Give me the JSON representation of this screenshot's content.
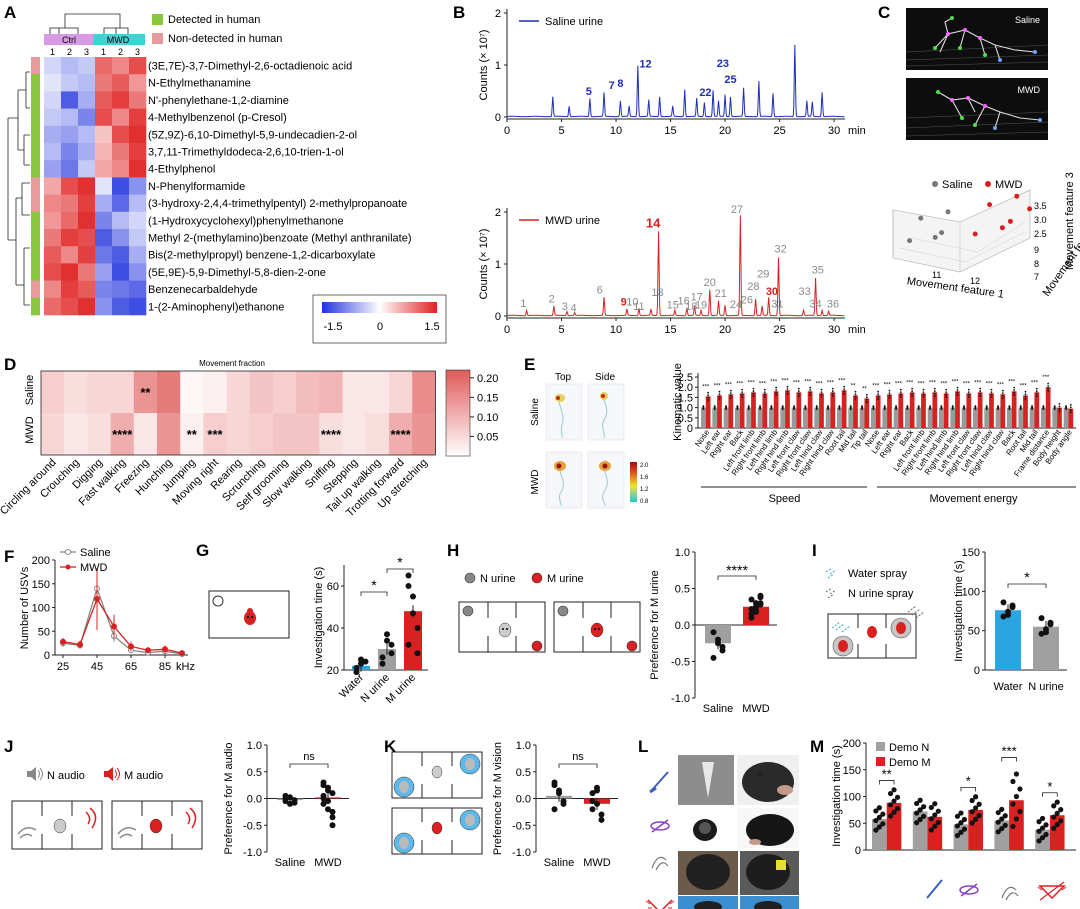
{
  "panel_labels": [
    "A",
    "B",
    "C",
    "D",
    "E",
    "F",
    "G",
    "H",
    "I",
    "J",
    "K",
    "L",
    "M"
  ],
  "colors": {
    "blue": "#1f2fb5",
    "red": "#d92121",
    "green": "#8cc63e",
    "pink": "#e99a9a",
    "ctrl": "#d79be6",
    "mwd": "#3fd3d3",
    "grey": "#8a8a8a",
    "lightblue": "#2aa5e0",
    "heat_low": "#2233dd",
    "heat_high": "#e02020"
  },
  "panelA": {
    "group_labels": [
      "Ctrl",
      "MWD"
    ],
    "col_labels": [
      "1",
      "2",
      "3",
      "1",
      "2",
      "3"
    ],
    "legend": [
      {
        "label": "Detected in human",
        "color": "#8cc63e"
      },
      {
        "label": "Non-detected in human",
        "color": "#e99a9a"
      }
    ],
    "compounds": [
      "(3E,7E)-3,7-Dimethyl-2,6-octadienoic acid",
      "N-Ethylmethanamine",
      "N'-phenylethane-1,2-diamine",
      "4-Methylbenzenol (p-Cresol)",
      "(5Z,9Z)-6,10-Dimethyl-5,9-undecadien-2-ol",
      "3,7,11-Trimethyldodeca-2,6,10-trien-1-ol",
      "4-Ethylphenol",
      "N-Phenylformamide",
      "(3-hydroxy-2,4,4-trimethylpentyl) 2-methylpropanoate",
      "(1-Hydroxycyclohexyl)phenylmethanone",
      "Methyl 2-(methylamino)benzoate  (Methyl anthranilate)",
      "Bis(2-methylpropyl) benzene-1,2-dicarboxylate",
      "(5E,9E)-5,9-Dimethyl-5,8-dien-2-one",
      "Benzenecarbaldehyde",
      "1-(2-Aminophenyl)ethanone"
    ],
    "detected": [
      0,
      1,
      1,
      1,
      1,
      1,
      1,
      0,
      0,
      1,
      1,
      1,
      1,
      0,
      1
    ],
    "matrix": [
      [
        -0.3,
        -0.5,
        -0.4,
        1.0,
        0.8,
        1.2
      ],
      [
        -0.2,
        -0.4,
        -0.5,
        0.9,
        1.1,
        0.7
      ],
      [
        -0.3,
        -1.2,
        -0.6,
        1.1,
        1.3,
        0.9
      ],
      [
        -0.4,
        -0.5,
        -0.9,
        1.2,
        0.8,
        1.3
      ],
      [
        -0.6,
        -0.7,
        -0.5,
        0.4,
        1.2,
        1.4
      ],
      [
        -0.5,
        -0.9,
        -0.6,
        0.5,
        0.9,
        1.3
      ],
      [
        -0.7,
        -1.0,
        -0.4,
        0.6,
        0.8,
        1.4
      ],
      [
        0.6,
        1.2,
        1.4,
        -0.2,
        -1.3,
        -0.8
      ],
      [
        0.8,
        0.9,
        1.3,
        -0.6,
        -1.1,
        -0.5
      ],
      [
        0.7,
        1.0,
        1.4,
        -0.9,
        -0.5,
        -0.3
      ],
      [
        0.9,
        1.3,
        1.2,
        -1.2,
        -0.8,
        -0.4
      ],
      [
        1.1,
        0.8,
        1.3,
        -1.0,
        -1.2,
        -0.6
      ],
      [
        1.2,
        1.4,
        0.9,
        -0.7,
        -1.3,
        -0.8
      ],
      [
        0.8,
        1.3,
        1.1,
        -0.9,
        -1.0,
        -1.1
      ],
      [
        1.0,
        1.2,
        1.4,
        -0.8,
        -1.2,
        -1.3
      ]
    ],
    "scale_ticks": [
      "-1.5",
      "0",
      "1.5"
    ]
  },
  "panelB": {
    "top": {
      "legend": "Saline urine",
      "ylabel": "Counts (× 10⁷)",
      "yticks": [
        "0",
        "1",
        "2"
      ],
      "xticks": [
        "0",
        "5",
        "10",
        "15",
        "20",
        "25",
        "30"
      ],
      "xunit": "min",
      "peaks": [
        {
          "x": 4.2,
          "h": 0.38
        },
        {
          "x": 5.7,
          "h": 0.2
        },
        {
          "x": 7.6,
          "h": 0.35
        },
        {
          "x": 8.9,
          "h": 0.46
        },
        {
          "x": 10.4,
          "h": 0.3
        },
        {
          "x": 11.2,
          "h": 0.2
        },
        {
          "x": 12.0,
          "h": 0.98
        },
        {
          "x": 13.0,
          "h": 0.32
        },
        {
          "x": 14.0,
          "h": 0.38
        },
        {
          "x": 15.2,
          "h": 0.2
        },
        {
          "x": 16.3,
          "h": 0.52
        },
        {
          "x": 17.4,
          "h": 0.35
        },
        {
          "x": 18.1,
          "h": 0.27
        },
        {
          "x": 18.9,
          "h": 0.5
        },
        {
          "x": 19.4,
          "h": 0.3
        },
        {
          "x": 20.0,
          "h": 0.42
        },
        {
          "x": 20.5,
          "h": 0.38
        },
        {
          "x": 21.7,
          "h": 0.55
        },
        {
          "x": 23.1,
          "h": 0.68
        },
        {
          "x": 24.4,
          "h": 0.45
        },
        {
          "x": 26.4,
          "h": 1.38
        },
        {
          "x": 27.5,
          "h": 0.3
        },
        {
          "x": 28.0,
          "h": 0.28
        },
        {
          "x": 28.9,
          "h": 0.47
        }
      ],
      "labels": [
        {
          "text": "5",
          "x": 7.5,
          "h": 0.42
        },
        {
          "text": "7",
          "x": 9.6,
          "h": 0.54
        },
        {
          "text": "8",
          "x": 10.4,
          "h": 0.58
        },
        {
          "text": "12",
          "x": 12.7,
          "h": 0.95
        },
        {
          "text": "22",
          "x": 18.2,
          "h": 0.4
        },
        {
          "text": "23",
          "x": 19.8,
          "h": 0.96
        },
        {
          "text": "25",
          "x": 20.5,
          "h": 0.65
        }
      ]
    },
    "bottom": {
      "legend": "MWD urine",
      "ylabel": "Counts (× 10⁷)",
      "yticks": [
        "0",
        "1",
        "2"
      ],
      "xticks": [
        "0",
        "5",
        "10",
        "15",
        "20",
        "25",
        "30"
      ],
      "xunit": "min",
      "peaks": [
        {
          "x": 1.8,
          "h": 0.1
        },
        {
          "x": 4.3,
          "h": 0.18
        },
        {
          "x": 5.5,
          "h": 0.08
        },
        {
          "x": 6.2,
          "h": 0.06
        },
        {
          "x": 8.9,
          "h": 0.35
        },
        {
          "x": 11.0,
          "h": 0.12
        },
        {
          "x": 12.1,
          "h": 0.14
        },
        {
          "x": 13.2,
          "h": 0.12
        },
        {
          "x": 13.9,
          "h": 1.62
        },
        {
          "x": 15.4,
          "h": 0.1
        },
        {
          "x": 16.5,
          "h": 0.15
        },
        {
          "x": 17.2,
          "h": 0.18
        },
        {
          "x": 17.8,
          "h": 0.1
        },
        {
          "x": 18.6,
          "h": 0.5
        },
        {
          "x": 19.4,
          "h": 0.28
        },
        {
          "x": 20.0,
          "h": 0.2
        },
        {
          "x": 21.4,
          "h": 1.92
        },
        {
          "x": 22.8,
          "h": 0.32
        },
        {
          "x": 23.4,
          "h": 0.18
        },
        {
          "x": 24.0,
          "h": 0.35
        },
        {
          "x": 24.9,
          "h": 1.12
        },
        {
          "x": 27.2,
          "h": 0.1
        },
        {
          "x": 28.3,
          "h": 0.72
        },
        {
          "x": 28.9,
          "h": 0.1
        },
        {
          "x": 29.5,
          "h": 0.08
        }
      ],
      "labels": [
        {
          "text": "1",
          "x": 1.5,
          "h": 0.17,
          "c": "grey"
        },
        {
          "text": "2",
          "x": 4.1,
          "h": 0.26,
          "c": "grey"
        },
        {
          "text": "3",
          "x": 5.3,
          "h": 0.12,
          "c": "grey"
        },
        {
          "text": "4",
          "x": 6.1,
          "h": 0.09,
          "c": "grey"
        },
        {
          "text": "6",
          "x": 8.5,
          "h": 0.43,
          "c": "grey"
        },
        {
          "text": "9",
          "x": 10.7,
          "h": 0.2,
          "c": "red"
        },
        {
          "text": "10",
          "x": 11.5,
          "h": 0.2,
          "c": "grey"
        },
        {
          "text": "11",
          "x": 12.1,
          "h": 0.12,
          "c": "grey"
        },
        {
          "text": "13",
          "x": 13.8,
          "h": 0.38,
          "c": "grey"
        },
        {
          "text": "14",
          "x": 13.4,
          "h": 1.7,
          "c": "red"
        },
        {
          "text": "15",
          "x": 15.2,
          "h": 0.14,
          "c": "grey"
        },
        {
          "text": "16",
          "x": 16.2,
          "h": 0.22,
          "c": "grey"
        },
        {
          "text": "17",
          "x": 17.4,
          "h": 0.3,
          "c": "grey"
        },
        {
          "text": "18",
          "x": 16.9,
          "h": 0.12,
          "c": "grey"
        },
        {
          "text": "19",
          "x": 17.8,
          "h": 0.14,
          "c": "grey"
        },
        {
          "text": "20",
          "x": 18.6,
          "h": 0.58,
          "c": "grey"
        },
        {
          "text": "21",
          "x": 19.6,
          "h": 0.37,
          "c": "grey"
        },
        {
          "text": "24",
          "x": 21.0,
          "h": 0.15,
          "c": "grey"
        },
        {
          "text": "26",
          "x": 22.0,
          "h": 0.24,
          "c": "grey"
        },
        {
          "text": "27",
          "x": 21.1,
          "h": 1.98,
          "c": "grey"
        },
        {
          "text": "28",
          "x": 22.6,
          "h": 0.5,
          "c": "grey"
        },
        {
          "text": "29",
          "x": 23.5,
          "h": 0.74,
          "c": "grey"
        },
        {
          "text": "30",
          "x": 24.3,
          "h": 0.4,
          "c": "red"
        },
        {
          "text": "31",
          "x": 24.8,
          "h": 0.16,
          "c": "grey"
        },
        {
          "text": "32",
          "x": 25.1,
          "h": 1.22,
          "c": "grey"
        },
        {
          "text": "33",
          "x": 27.3,
          "h": 0.4,
          "c": "grey"
        },
        {
          "text": "34",
          "x": 28.3,
          "h": 0.16,
          "c": "grey"
        },
        {
          "text": "35",
          "x": 28.5,
          "h": 0.82,
          "c": "grey"
        },
        {
          "text": "36",
          "x": 29.9,
          "h": 0.16,
          "c": "grey"
        }
      ]
    }
  },
  "panelC": {
    "top_label": "Saline",
    "bottom_label": "MWD",
    "legend": [
      "Saline",
      "MWD"
    ],
    "x_label": "Movement feature 1",
    "y_label": "Movement feature 2",
    "z_label": "Movement feature 3",
    "x_ticks": [
      "11",
      "12"
    ],
    "y_ticks": [
      "7",
      "8",
      "9"
    ],
    "z_ticks": [
      "2.5",
      "3.0",
      "3.5"
    ],
    "saline": [
      [
        6,
        9
      ],
      [
        13,
        23
      ],
      [
        22,
        11
      ],
      [
        30,
        27
      ],
      [
        26,
        14
      ]
    ],
    "mwd": [
      [
        47,
        10
      ],
      [
        56,
        24
      ],
      [
        64,
        13
      ],
      [
        73,
        28
      ],
      [
        69,
        16
      ],
      [
        81,
        22
      ]
    ]
  },
  "panelD": {
    "title": "Movement fraction",
    "rows": [
      "Saline",
      "MWD"
    ],
    "behaviors": [
      "Circling around",
      "Crouching",
      "Digging",
      "Fast walking",
      "Freezing",
      "Hunching",
      "Jumping",
      "Moving right",
      "Rearing",
      "Scrunching",
      "Self grooming",
      "Slow walking",
      "Sniffing",
      "Stepping",
      "Tail up walking",
      "Trotting forward",
      "Up stretching"
    ],
    "saline": [
      0.06,
      0.04,
      0.05,
      0.05,
      0.13,
      0.16,
      0.01,
      0.02,
      0.05,
      0.07,
      0.06,
      0.08,
      0.09,
      0.03,
      0.03,
      0.05,
      0.14
    ],
    "mwd": [
      0.05,
      0.03,
      0.04,
      0.1,
      0.03,
      0.13,
      0.02,
      0.06,
      0.05,
      0.06,
      0.07,
      0.07,
      0.04,
      0.03,
      0.04,
      0.1,
      0.13
    ],
    "sig": [
      {
        "row": 0,
        "col": 4,
        "text": "**"
      },
      {
        "row": 1,
        "col": 3,
        "text": "****"
      },
      {
        "row": 1,
        "col": 6,
        "text": "**"
      },
      {
        "row": 1,
        "col": 7,
        "text": "***"
      },
      {
        "row": 1,
        "col": 12,
        "text": "****"
      },
      {
        "row": 1,
        "col": 15,
        "text": "****"
      }
    ],
    "scale_ticks": [
      "0.20",
      "0.15",
      "0.10",
      "0.05"
    ]
  },
  "panelE": {
    "col_labels": [
      "Top",
      "Side"
    ],
    "row_labels": [
      "Saline",
      "MWD"
    ],
    "scale_ticks": [
      "2.0",
      "1.6",
      "1.2",
      "0.8"
    ],
    "ylabel": "Kinematic value",
    "yticks": [
      "0",
      "0.5",
      "1.0",
      "1.5",
      "2.0",
      "2.5"
    ],
    "speed_labels": [
      "Nose",
      "Left ear",
      "Right ear",
      "Back",
      "Left front limb",
      "Right front limb",
      "Left hind limb",
      "Right hind limb",
      "Left front claw",
      "Right front claw",
      "Left hind claw",
      "Right hind claw",
      "Root tail",
      "Mid tail",
      "Tip tail"
    ],
    "energy_labels": [
      "Nose",
      "Left ear",
      "Right ear",
      "Back",
      "Left front limb",
      "Right front limb",
      "Left hind limb",
      "Right hind limb",
      "Left front claw",
      "Right front claw",
      "Left hind claw",
      "Right hind claw",
      "Back",
      "Root tail",
      "Mid tail",
      "Frame distance",
      "Body height",
      "Body angle"
    ],
    "group_labels": [
      "Speed",
      "Movement energy"
    ],
    "saline": [
      1.0,
      1.0,
      1.0,
      1.0,
      1.0,
      1.0,
      1.0,
      1.0,
      1.0,
      1.0,
      1.0,
      1.0,
      1.0,
      1.0,
      1.0,
      1.0,
      1.0,
      1.0,
      1.0,
      1.0,
      1.0,
      1.0,
      1.0,
      1.0,
      1.0,
      1.0,
      1.0,
      1.0,
      1.0,
      1.0,
      1.0,
      1.0,
      1.0
    ],
    "mwd": [
      1.55,
      1.6,
      1.65,
      1.7,
      1.75,
      1.7,
      1.8,
      1.85,
      1.75,
      1.8,
      1.7,
      1.75,
      1.85,
      1.6,
      1.45,
      1.6,
      1.65,
      1.7,
      1.75,
      1.7,
      1.75,
      1.7,
      1.8,
      1.7,
      1.75,
      1.7,
      1.65,
      1.8,
      1.6,
      1.75,
      2.0,
      1.0,
      0.95
    ],
    "sig": [
      "***",
      "***",
      "***",
      "***",
      "***",
      "***",
      "***",
      "***",
      "***",
      "***",
      "***",
      "***",
      "***",
      "**",
      "**",
      "***",
      "***",
      "***",
      "***",
      "***",
      "***",
      "***",
      "***",
      "***",
      "***",
      "***",
      "***",
      "***",
      "***",
      "***",
      "***",
      "",
      ""
    ]
  },
  "panelF": {
    "legend": [
      "Saline",
      "MWD"
    ],
    "ylabel": "Number of USVs",
    "yticks": [
      "0",
      "50",
      "100",
      "150",
      "200"
    ],
    "xticks": [
      "25",
      "45",
      "65",
      "85"
    ],
    "xunit": "kHz",
    "x": [
      25,
      35,
      45,
      55,
      65,
      75,
      85,
      95
    ],
    "saline": [
      25,
      20,
      140,
      40,
      10,
      5,
      8,
      2
    ],
    "mwd": [
      28,
      22,
      118,
      60,
      18,
      10,
      12,
      4
    ],
    "saline_err": [
      8,
      6,
      30,
      12,
      5,
      3,
      6,
      2
    ],
    "mwd_err": [
      8,
      8,
      65,
      25,
      10,
      6,
      8,
      3
    ]
  },
  "panelG": {
    "ylabel": "Investigation time (s)",
    "yticks": [
      "20",
      "40",
      "60"
    ],
    "categories": [
      "Water",
      "N urine",
      "M urine"
    ],
    "values": [
      22,
      30,
      48
    ],
    "sig": [
      "*",
      "*"
    ],
    "points": [
      [
        21,
        23,
        24,
        19,
        25
      ],
      [
        26,
        34,
        28,
        23,
        37,
        32
      ],
      [
        60,
        55,
        40,
        32,
        47,
        28,
        65
      ]
    ]
  },
  "panelH": {
    "legend": [
      "N urine",
      "M urine"
    ],
    "ylabel": "Preference for M urine",
    "yticks": [
      "-1.0",
      "-0.5",
      "0.0",
      "0.5",
      "1.0"
    ],
    "categories": [
      "Saline",
      "MWD"
    ],
    "values": [
      -0.25,
      0.25
    ],
    "sig": "****",
    "points": [
      [
        -0.1,
        -0.2,
        -0.35,
        -0.45,
        -0.25,
        -0.3
      ],
      [
        0.1,
        0.2,
        0.3,
        0.35,
        0.25,
        0.4,
        0.15,
        0.3,
        0.38,
        0.22,
        0.18,
        0.28
      ]
    ]
  },
  "panelI": {
    "legend": [
      "Water spray",
      "N urine spray"
    ],
    "ylabel": "Investigation time (s)",
    "yticks": [
      "0",
      "50",
      "100",
      "150"
    ],
    "categories": [
      "Water",
      "N urine"
    ],
    "values": [
      76,
      55
    ],
    "sig": "*",
    "points": [
      [
        68,
        74,
        82,
        86,
        70,
        80
      ],
      [
        46,
        52,
        60,
        66,
        48,
        58
      ]
    ]
  },
  "panelJ": {
    "legend": [
      "N audio",
      "M audio"
    ],
    "ylabel": "Preference for M audio",
    "yticks": [
      "-1.0",
      "-0.5",
      "0.0",
      "0.5",
      "1.0"
    ],
    "categories": [
      "Saline",
      "MWD"
    ],
    "values": [
      -0.03,
      0.02
    ],
    "sig": "ns",
    "points": [
      [
        -0.05,
        0.02,
        -0.08,
        0.0,
        -0.1,
        -0.03,
        0.05
      ],
      [
        0.3,
        0.2,
        0.1,
        -0.1,
        -0.2,
        -0.35,
        0.05,
        0.15,
        -0.5,
        0.25,
        -0.05,
        -0.25,
        0.0
      ]
    ]
  },
  "panelK": {
    "ylabel": "Preference for M vision",
    "yticks": [
      "-1.0",
      "-0.5",
      "0.0",
      "0.5",
      "1.0"
    ],
    "categories": [
      "Saline",
      "MWD"
    ],
    "values": [
      0.05,
      -0.1
    ],
    "sig": "ns",
    "points": [
      [
        0.25,
        0.1,
        -0.05,
        -0.2,
        0.15,
        -0.1,
        0.3
      ],
      [
        0.1,
        -0.1,
        -0.4,
        -0.2,
        0.15,
        -0.3,
        -0.05,
        0.2
      ]
    ]
  },
  "panelM": {
    "legend": [
      "Demo N",
      "Demo M"
    ],
    "ylabel": "Investigation time (s)",
    "yticks": [
      "0",
      "50",
      "100",
      "150",
      "200"
    ],
    "groups": [
      {
        "n": 58,
        "m": 88,
        "sig": "**"
      },
      {
        "n": 72,
        "m": 62,
        "sig": ""
      },
      {
        "n": 48,
        "m": 75,
        "sig": "*"
      },
      {
        "n": 55,
        "m": 93,
        "sig": "***"
      },
      {
        "n": 38,
        "m": 65,
        "sig": "*"
      }
    ]
  }
}
